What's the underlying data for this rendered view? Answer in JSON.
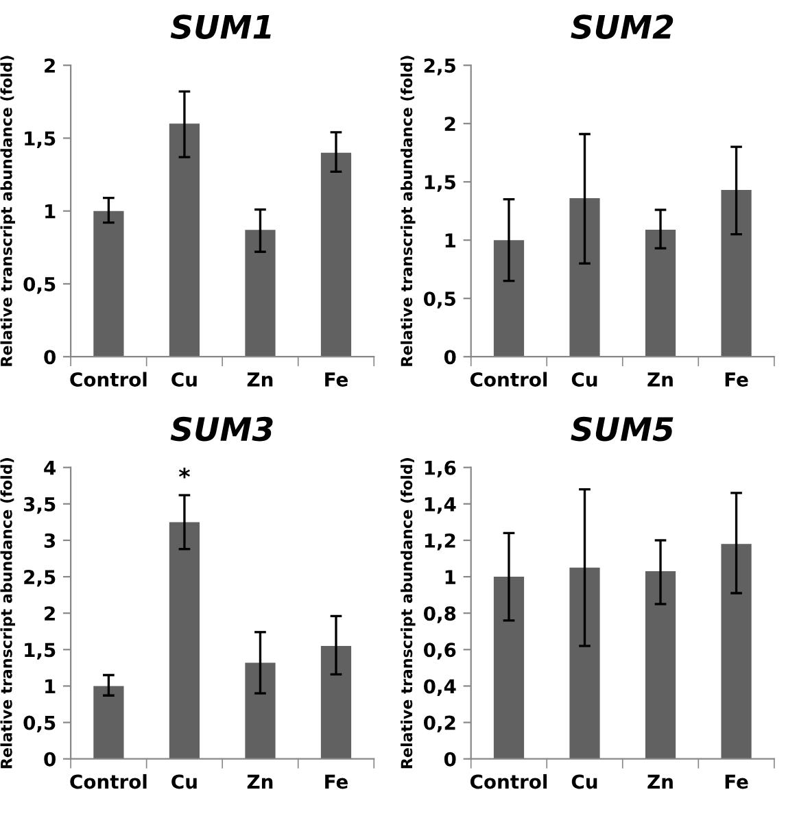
{
  "chart_data": [
    {
      "type": "bar",
      "title": "SUM1",
      "ylabel": "Relative transcript abundance (fold)",
      "categories": [
        "Control",
        "Cu",
        "Zn",
        "Fe"
      ],
      "color": "#616161",
      "values": [
        1.0,
        1.6,
        0.87,
        1.4
      ],
      "errors": [
        [
          0.92,
          1.09
        ],
        [
          1.37,
          1.82
        ],
        [
          0.72,
          1.01
        ],
        [
          1.27,
          1.54
        ]
      ],
      "ylim": [
        0,
        2
      ],
      "yticks": [
        0,
        {
          "value": 0.5,
          "label": "0,5"
        },
        1,
        {
          "value": 1.5,
          "label": "1,5"
        },
        2
      ],
      "grid": false
    },
    {
      "type": "bar",
      "title": "SUM2",
      "ylabel": "Relative transcript abundance (fold)",
      "categories": [
        "Control",
        "Cu",
        "Zn",
        "Fe"
      ],
      "color": "#616161",
      "values": [
        1.0,
        1.36,
        1.09,
        1.43
      ],
      "errors": [
        [
          0.65,
          1.35
        ],
        [
          0.8,
          1.91
        ],
        [
          0.93,
          1.26
        ],
        [
          1.05,
          1.8
        ]
      ],
      "ylim": [
        0,
        2.5
      ],
      "yticks": [
        0,
        {
          "value": 0.5,
          "label": "0,5"
        },
        1,
        {
          "value": 1.5,
          "label": "1,5"
        },
        2,
        {
          "value": 2.5,
          "label": "2,5"
        }
      ],
      "grid": false
    },
    {
      "type": "bar",
      "title": "SUM3",
      "ylabel": "Relative transcript abundance (fold)",
      "categories": [
        "Control",
        "Cu",
        "Zn",
        "Fe"
      ],
      "color": "#616161",
      "values": [
        1.0,
        3.25,
        1.32,
        1.55
      ],
      "errors": [
        [
          0.87,
          1.15
        ],
        [
          2.88,
          3.62
        ],
        [
          0.9,
          1.74
        ],
        [
          1.16,
          1.96
        ]
      ],
      "annotations": [
        {
          "text": "*",
          "x": "Cu",
          "y": 3.62
        }
      ],
      "ylim": [
        0,
        4
      ],
      "yticks": [
        0,
        {
          "value": 0.5,
          "label": "0,5"
        },
        1,
        {
          "value": 1.5,
          "label": "1,5"
        },
        2,
        {
          "value": 2.5,
          "label": "2,5"
        },
        3,
        {
          "value": 3.5,
          "label": "3,5"
        },
        4
      ],
      "grid": false
    },
    {
      "type": "bar",
      "title": "SUM5",
      "ylabel": "Relative transcript abundance (fold)",
      "categories": [
        "Control",
        "Cu",
        "Zn",
        "Fe"
      ],
      "color": "#616161",
      "values": [
        1.0,
        1.05,
        1.03,
        1.18
      ],
      "errors": [
        [
          0.76,
          1.24
        ],
        [
          0.62,
          1.48
        ],
        [
          0.85,
          1.2
        ],
        [
          0.91,
          1.46
        ]
      ],
      "ylim": [
        0,
        1.6
      ],
      "yticks": [
        0,
        {
          "value": 0.2,
          "label": "0,2"
        },
        {
          "value": 0.4,
          "label": "0,4"
        },
        {
          "value": 0.6,
          "label": "0,6"
        },
        {
          "value": 0.8,
          "label": "0,8"
        },
        1,
        {
          "value": 1.2,
          "label": "1,2"
        },
        {
          "value": 1.4,
          "label": "1,4"
        },
        {
          "value": 1.6,
          "label": "1,6"
        }
      ],
      "grid": false
    }
  ]
}
